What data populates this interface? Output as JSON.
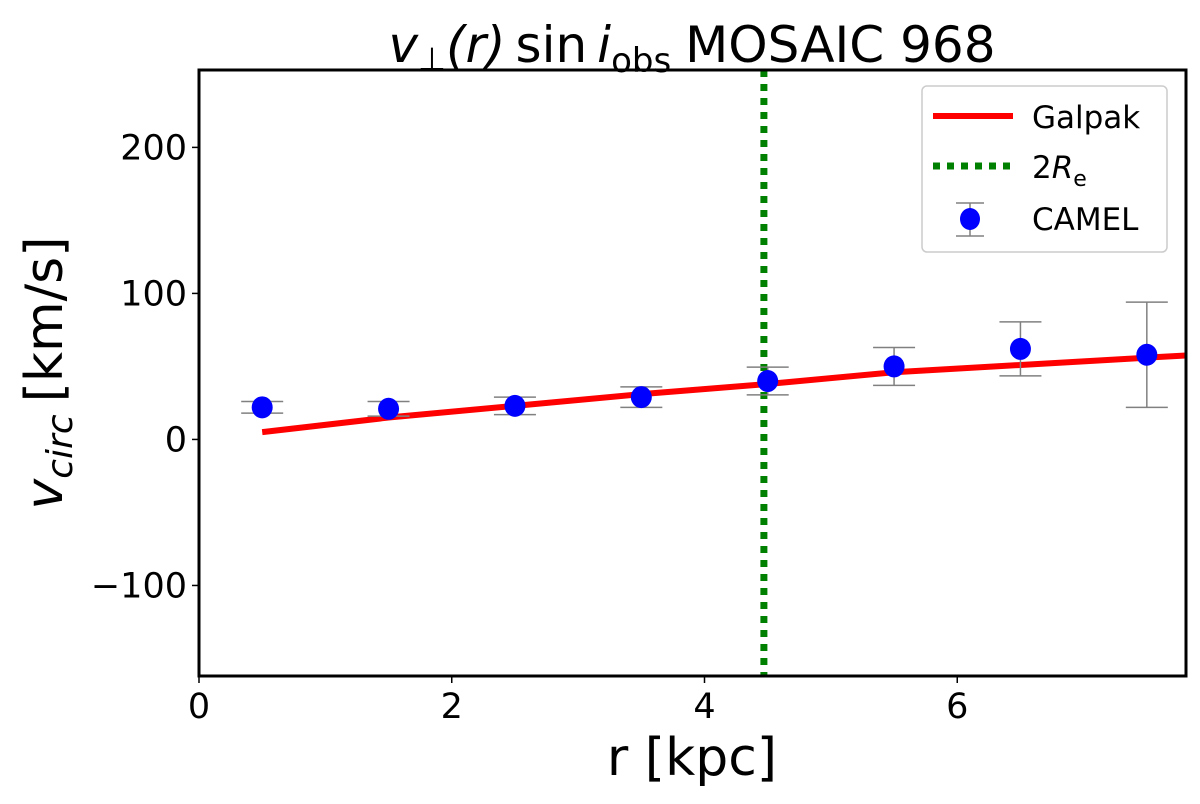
{
  "chart_data": {
    "type": "line",
    "title": "v⊥(r) sin i_obs MOSAIC 968",
    "title_parts": {
      "v": "v",
      "perp": "⊥",
      "r": "(r)",
      "sin": "sin",
      "i": "i",
      "obs": "obs",
      "rest": "MOSAIC 968"
    },
    "xlabel": "r [kpc]",
    "ylabel": "v_circ [km/s]",
    "ylabel_parts": {
      "v": "v",
      "sub": "circ",
      "unit": "[km/s]"
    },
    "xlim": [
      0,
      7.81
    ],
    "ylim": [
      -162,
      253
    ],
    "xticks": [
      0,
      2,
      4,
      6
    ],
    "xtick_labels": [
      "0",
      "2",
      "4",
      "6"
    ],
    "yticks": [
      200,
      100,
      0,
      -100
    ],
    "ytick_labels": [
      "200",
      "100",
      "0",
      "−100"
    ],
    "grid": false,
    "legend_position": "top-right",
    "series": [
      {
        "name": "Galpak",
        "kind": "line",
        "color": "#ff0000",
        "x": [
          0.5,
          1.5,
          2.5,
          3.5,
          4.5,
          5.5,
          6.5,
          7.5,
          7.81
        ],
        "y": [
          5,
          15,
          23,
          31,
          38,
          46,
          51,
          56,
          57.5
        ]
      },
      {
        "name": "2R_e",
        "legend_parts": {
          "n": "2",
          "R": "R",
          "sub": "e"
        },
        "kind": "vline",
        "color": "#008000",
        "x": 4.47
      },
      {
        "name": "CAMEL",
        "kind": "errorbar",
        "color": "#0000ff",
        "error_color": "#808080",
        "x": [
          0.5,
          1.5,
          2.5,
          3.5,
          4.5,
          5.5,
          6.5,
          7.5
        ],
        "y": [
          22,
          21,
          23,
          29,
          40,
          50,
          62,
          58
        ],
        "yerr": [
          4,
          5,
          6,
          7,
          9.5,
          13,
          18.5,
          36
        ]
      }
    ]
  }
}
